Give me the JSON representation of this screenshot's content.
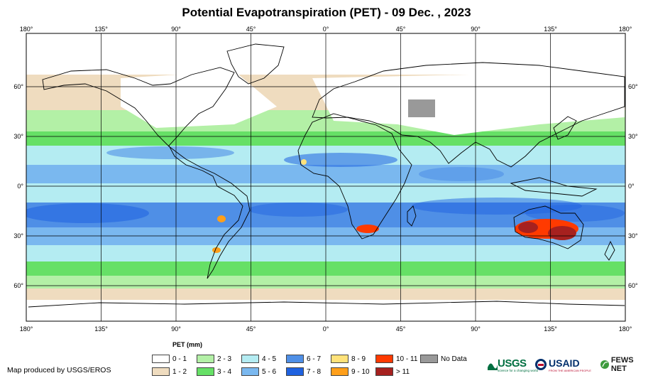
{
  "title": "Potential Evapotranspiration (PET) - 09 Dec. , 2023",
  "map": {
    "lon_labels": [
      "180°",
      "135°",
      "90°",
      "45°",
      "0°",
      "45°",
      "90°",
      "135°",
      "180°"
    ],
    "lat_labels": [
      "60°",
      "30°",
      "0°",
      "30°",
      "60°"
    ]
  },
  "legend": {
    "title": "PET (mm)",
    "items": [
      {
        "label": "0 - 1",
        "color": "#ffffff"
      },
      {
        "label": "1 - 2",
        "color": "#efdcbf"
      },
      {
        "label": "2 - 3",
        "color": "#b3f0a6"
      },
      {
        "label": "3 - 4",
        "color": "#66e066"
      },
      {
        "label": "4 - 5",
        "color": "#b4ecf2"
      },
      {
        "label": "5 - 6",
        "color": "#7ab8ef"
      },
      {
        "label": "6 - 7",
        "color": "#4f8fe6"
      },
      {
        "label": "7 - 8",
        "color": "#1f62e0"
      },
      {
        "label": "8 - 9",
        "color": "#ffe27a"
      },
      {
        "label": "9 - 10",
        "color": "#ff9f1a"
      },
      {
        "label": "10 - 11",
        "color": "#ff3a00"
      },
      {
        "label": "> 11",
        "color": "#a6211f"
      },
      {
        "label": "No Data",
        "color": "#999999"
      }
    ]
  },
  "footer": {
    "producer": "Map produced by USGS/EROS",
    "logos": {
      "usgs": "USGS",
      "usgs_tagline": "science for a changing world",
      "usaid": "USAID",
      "usaid_tagline": "FROM THE AMERICAN PEOPLE",
      "fews": "FEWS NET"
    }
  }
}
